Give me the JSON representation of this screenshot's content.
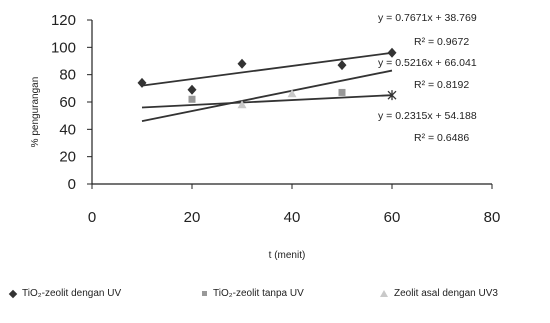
{
  "chart_data": {
    "type": "scatter",
    "title": "",
    "xlabel": "t (menit)",
    "ylabel": "% pengurangan",
    "xlim": [
      0,
      80
    ],
    "ylim": [
      0,
      120
    ],
    "xticks": [
      0,
      20,
      40,
      60,
      80
    ],
    "yticks": [
      0,
      20,
      40,
      60,
      80,
      100,
      120
    ],
    "grid": false,
    "legend_position": "bottom",
    "series": [
      {
        "name": "TiO₂-zeolit dengan UV",
        "marker": "diamond",
        "color": "#333333",
        "x": [
          10,
          20,
          30,
          50,
          60
        ],
        "y": [
          74,
          69,
          88,
          87,
          96
        ],
        "trendline": {
          "slope": 0.7671,
          "intercept": 38.769
        },
        "equation": "y = 0.7671x + 38.769",
        "r2": "R² = 0.9672"
      },
      {
        "name": "TiO₂-zeolit tanpa UV",
        "marker": "square",
        "color": "#999999",
        "x": [
          20,
          50
        ],
        "y": [
          62,
          67
        ],
        "trendline": {
          "slope": 0.5216,
          "intercept": 66.041
        },
        "equation": "y = 0.5216x + 66.041",
        "r2": "R² = 0.8192"
      },
      {
        "name": "Zeolit asal dengan UV3",
        "marker": "triangle",
        "color": "#c9c9c9",
        "x": [
          30,
          40
        ],
        "y": [
          58,
          66
        ],
        "trendline": {
          "slope": 0.2315,
          "intercept": 54.188
        },
        "equation": "y = 0.2315x + 54.188",
        "r2": "R² = 0.6486"
      }
    ]
  }
}
